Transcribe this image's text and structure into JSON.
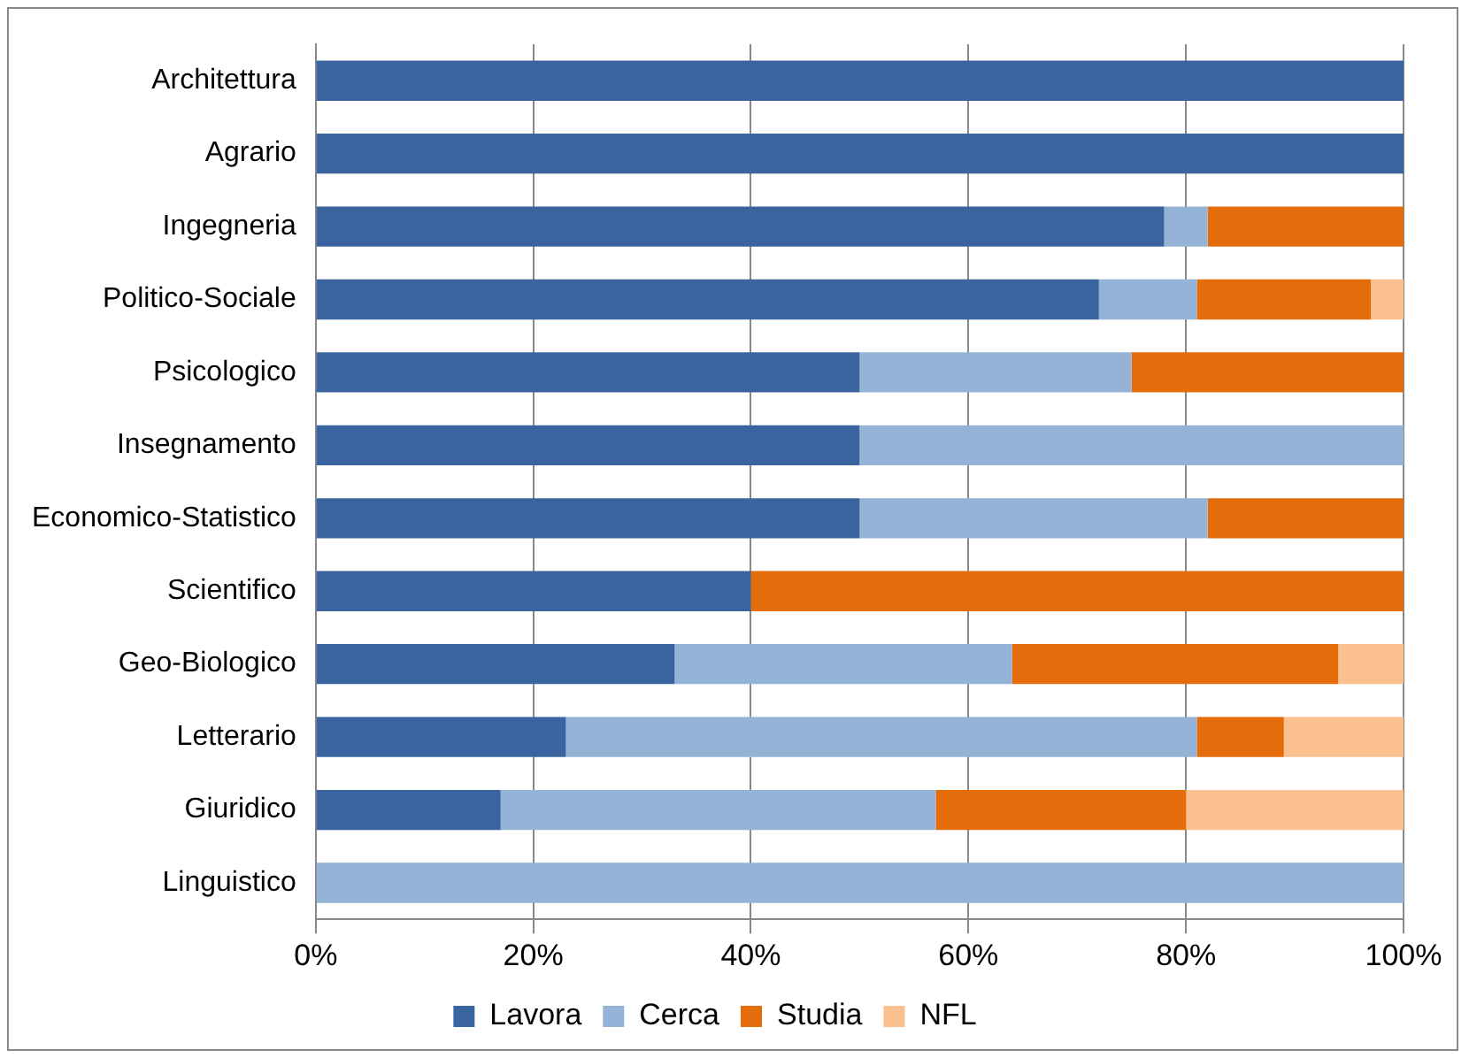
{
  "chart_data": {
    "type": "bar",
    "orientation": "horizontal",
    "stacked": true,
    "categories": [
      "Architettura",
      "Agrario",
      "Ingegneria",
      "Politico-Sociale",
      "Psicologico",
      "Insegnamento",
      "Economico-Statistico",
      "Scientifico",
      "Geo-Biologico",
      "Letterario",
      "Giuridico",
      "Linguistico"
    ],
    "series": [
      {
        "name": "Lavora",
        "color": "#3a64a0",
        "values": [
          100,
          100,
          78,
          72,
          50,
          50,
          50,
          40,
          33,
          23,
          17,
          0
        ]
      },
      {
        "name": "Cerca",
        "color": "#95b3d7",
        "values": [
          0,
          0,
          4,
          9,
          25,
          50,
          32,
          0,
          31,
          58,
          40,
          100
        ]
      },
      {
        "name": "Studia",
        "color": "#e46c0a",
        "values": [
          0,
          0,
          18,
          16,
          25,
          0,
          18,
          60,
          30,
          8,
          23,
          0
        ]
      },
      {
        "name": "NFL",
        "color": "#fac090",
        "values": [
          0,
          0,
          0,
          3,
          0,
          0,
          0,
          0,
          6,
          11,
          20,
          0
        ]
      }
    ],
    "xlim": [
      0,
      100
    ],
    "xticks": [
      {
        "value": 0,
        "label": "0%"
      },
      {
        "value": 20,
        "label": "20%"
      },
      {
        "value": 40,
        "label": "40%"
      },
      {
        "value": 60,
        "label": "60%"
      },
      {
        "value": 80,
        "label": "80%"
      },
      {
        "value": 100,
        "label": "100%"
      }
    ],
    "grid": "x",
    "legend": "bottom"
  }
}
